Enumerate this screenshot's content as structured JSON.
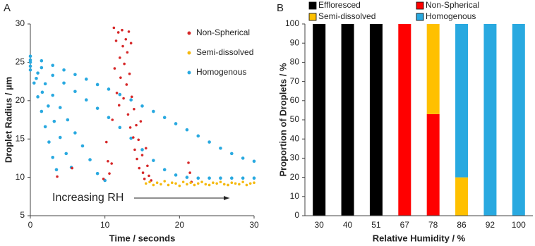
{
  "chart_data": [
    {
      "type": "scatter",
      "panel_label": "A",
      "xlabel": "Time / seconds",
      "ylabel": "Droplet Radius / µm",
      "annotation": "Increasing RH",
      "xlim": [
        0,
        30
      ],
      "xticks": [
        0,
        10,
        20,
        30
      ],
      "ylim": [
        5,
        30
      ],
      "yticks": [
        5,
        10,
        15,
        20,
        25,
        30
      ],
      "legend": "upper right",
      "series": [
        {
          "name": "Non-Spherical",
          "color": "#d62728",
          "x": [
            3.6,
            5.6,
            9.8,
            10.2,
            10.4,
            10.6,
            10.9,
            11.0,
            11.2,
            11.3,
            11.5,
            11.6,
            11.8,
            11.9,
            12.0,
            12.1,
            12.3,
            12.4,
            12.5,
            12.6,
            12.8,
            12.9,
            13.0,
            13.1,
            13.2,
            13.3,
            13.4,
            13.5,
            13.6,
            13.8,
            13.9,
            14.0,
            14.2,
            14.3,
            14.5,
            14.6,
            14.8,
            15.0,
            15.1,
            15.3,
            15.5,
            15.7,
            15.9,
            16.2,
            21.2,
            21.4,
            21.6
          ],
          "y": [
            10.1,
            11.2,
            9.8,
            14.6,
            12.1,
            10.5,
            11.8,
            17.5,
            29.5,
            24.2,
            27.8,
            21.0,
            28.9,
            19.4,
            25.6,
            23.0,
            29.2,
            27.1,
            20.3,
            24.8,
            28.0,
            22.1,
            26.3,
            18.2,
            29.0,
            23.5,
            16.5,
            27.5,
            20.5,
            15.2,
            18.9,
            13.6,
            16.8,
            12.4,
            14.9,
            11.2,
            17.3,
            12.9,
            10.6,
            9.8,
            13.8,
            11.5,
            10.2,
            9.6,
            11.9,
            10.6,
            9.4
          ]
        },
        {
          "name": "Semi-dissolved",
          "color": "#f5b90f",
          "x": [
            15.5,
            16,
            16.5,
            17,
            17.5,
            18,
            18.5,
            19,
            19.5,
            20,
            20.5,
            21,
            21.5,
            22,
            22.5,
            23,
            23.5,
            24,
            24.5,
            25,
            25.5,
            26,
            26.5,
            27,
            27.5,
            28,
            28.5,
            29,
            29.5,
            30
          ],
          "y": [
            9.2,
            9.4,
            9.0,
            9.3,
            9.1,
            9.5,
            9.0,
            9.3,
            9.2,
            8.9,
            9.4,
            9.1,
            9.3,
            9.0,
            9.2,
            9.4,
            9.1,
            9.0,
            9.3,
            9.2,
            9.4,
            9.1,
            9.0,
            9.3,
            9.2,
            9.1,
            9.4,
            9.0,
            9.2,
            9.3
          ]
        },
        {
          "name": "Homogenous",
          "color": "#29a9e0",
          "x": [
            0,
            0.5,
            1,
            1.5,
            2,
            2.5,
            3,
            3.5,
            0,
            0.8,
            1.6,
            2.4,
            3.2,
            4,
            4.8,
            5.5,
            0,
            1,
            2,
            3,
            4,
            5,
            6,
            7,
            8,
            9,
            10,
            0,
            1.5,
            3,
            4.5,
            6,
            7.5,
            9,
            10.5,
            12,
            13.5,
            15,
            16.5,
            18,
            19.5,
            21,
            22.5,
            24,
            25.5,
            27,
            28.5,
            30,
            0,
            1.5,
            3,
            4.5,
            6,
            7.5,
            9,
            10.5,
            12,
            13.5,
            15,
            16.5,
            18,
            19.5,
            21,
            22.5,
            24,
            25.5,
            27,
            28.5,
            30
          ],
          "y": [
            24,
            22.3,
            20.5,
            18.6,
            16.6,
            14.6,
            12.6,
            11.0,
            24.5,
            22.9,
            21.1,
            19.3,
            17.3,
            15.2,
            13.1,
            11.3,
            25,
            23.6,
            22.2,
            20.7,
            19.1,
            17.5,
            15.8,
            14.1,
            12.3,
            10.5,
            9.6,
            25.3,
            24.3,
            23.3,
            22.3,
            21.2,
            20.1,
            19,
            17.8,
            16.5,
            15.1,
            13.6,
            12.2,
            11,
            10.3,
            10.0,
            9.9,
            9.9,
            9.9,
            9.9,
            9.9,
            9.9,
            25.8,
            25.2,
            24.6,
            24.0,
            23.4,
            22.8,
            22.1,
            21.5,
            20.8,
            20.1,
            19.3,
            18.6,
            17.8,
            17.0,
            16.2,
            15.4,
            14.6,
            13.8,
            13.1,
            12.5,
            12.1
          ]
        }
      ]
    },
    {
      "type": "bar",
      "stacked": true,
      "panel_label": "B",
      "xlabel": "Relative Humidity / %",
      "ylabel": "Proportion of Droplets / %",
      "categories": [
        "30",
        "40",
        "51",
        "67",
        "78",
        "86",
        "92",
        "100"
      ],
      "ylim": [
        0,
        100
      ],
      "yticks": [
        0,
        10,
        20,
        30,
        40,
        50,
        60,
        70,
        80,
        90,
        100
      ],
      "legend": "top",
      "series": [
        {
          "name": "Effloresced",
          "color": "#000000",
          "values": [
            100,
            100,
            100,
            0,
            0,
            0,
            0,
            0
          ]
        },
        {
          "name": "Non-Spherical",
          "color": "#ff0000",
          "values": [
            0,
            0,
            0,
            100,
            53,
            0,
            0,
            0
          ]
        },
        {
          "name": "Semi-dissolved",
          "color": "#ffc000",
          "values": [
            0,
            0,
            0,
            0,
            47,
            20,
            0,
            0
          ]
        },
        {
          "name": "Homogenous",
          "color": "#29a9e0",
          "values": [
            0,
            0,
            0,
            0,
            0,
            80,
            100,
            100
          ]
        }
      ]
    }
  ]
}
